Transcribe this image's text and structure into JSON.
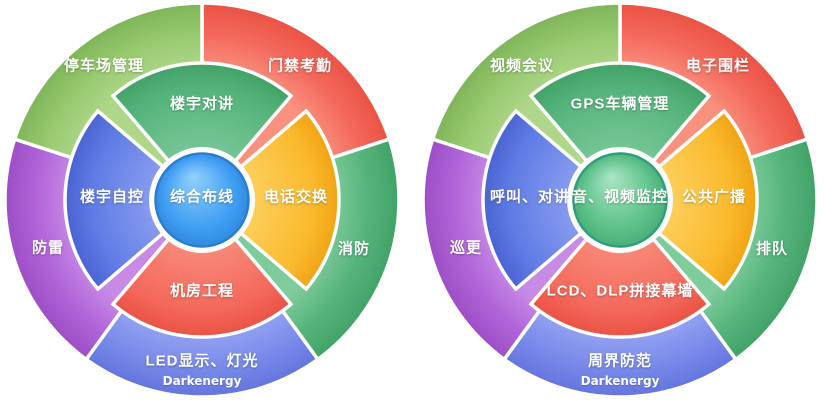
{
  "page": {
    "background": "#ffffff"
  },
  "palette": {
    "red": {
      "base": "#f4695c",
      "light": "#f9917f",
      "dark": "#ea5244"
    },
    "green": {
      "base": "#55b47a",
      "light": "#7ecb9c",
      "dark": "#41a268"
    },
    "lightgreen": {
      "base": "#97c96f",
      "light": "#afd78a",
      "dark": "#7eb558"
    },
    "blue": {
      "base": "#7b8ceb",
      "light": "#97a5f2",
      "dark": "#6375dd"
    },
    "innerblue": {
      "base": "#5f7ce5",
      "light": "#93a3f1",
      "dark": "#4a63d2"
    },
    "purple": {
      "base": "#b164d9",
      "light": "#c78be6",
      "dark": "#9d4ec6"
    },
    "orange": {
      "base": "#fbba2e",
      "light": "#fdd468",
      "dark": "#f0a414"
    }
  },
  "diagrams": [
    {
      "side": "left",
      "center": {
        "label": "综合布线",
        "fill": "#3f9ef3",
        "light": "#93d0fb",
        "dark": "#2f87dd",
        "stroke": "#2b7ecf"
      },
      "inner": [
        {
          "position": "n",
          "label": "楼宇对讲",
          "color": "green"
        },
        {
          "position": "e",
          "label": "电话交换",
          "color": "orange"
        },
        {
          "position": "s",
          "label": "机房工程",
          "color": "red"
        },
        {
          "position": "w",
          "label": "楼宇自控",
          "color": "innerblue"
        }
      ],
      "outer": [
        {
          "position": "a",
          "label": "门禁考勤",
          "color": "red"
        },
        {
          "position": "b",
          "label": "消防",
          "color": "green"
        },
        {
          "position": "c",
          "label": "LED显示、灯光",
          "color": "blue"
        },
        {
          "position": "d",
          "label": "防雷",
          "color": "purple"
        },
        {
          "position": "e",
          "label": "停车场管理",
          "color": "lightgreen"
        }
      ],
      "watermark": "Darkenergy"
    },
    {
      "side": "right",
      "center": {
        "label": "音、视频监控",
        "fill": "#5cc189",
        "light": "#abe5c4",
        "dark": "#46ad75",
        "stroke": "#2f9e7d"
      },
      "inner": [
        {
          "position": "n",
          "label": "GPS车辆管理",
          "color": "green"
        },
        {
          "position": "e",
          "label": "公共广播",
          "color": "orange"
        },
        {
          "position": "s",
          "label": "LCD、DLP拼接幕墙",
          "color": "red"
        },
        {
          "position": "w",
          "label": "呼叫、对讲",
          "color": "innerblue"
        }
      ],
      "outer": [
        {
          "position": "a",
          "label": "电子围栏",
          "color": "red"
        },
        {
          "position": "b",
          "label": "排队",
          "color": "green"
        },
        {
          "position": "c",
          "label": "周界防范",
          "color": "blue"
        },
        {
          "position": "d",
          "label": "巡更",
          "color": "purple"
        },
        {
          "position": "e",
          "label": "视频会议",
          "color": "lightgreen"
        }
      ],
      "watermark": "Darkenergy"
    }
  ]
}
